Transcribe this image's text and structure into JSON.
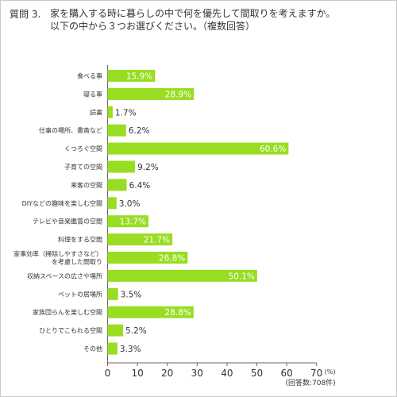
{
  "question": {
    "number": "質問 3.",
    "line1": "家を購入する時に暮らしの中で何を優先して間取りを考えますか。",
    "line2": "以下の中から３つお選びください。（複数回答）"
  },
  "colors": {
    "bar": "#99dd22",
    "label_inside": "#ffffff",
    "label_outside": "#333333",
    "axis": "#666666",
    "grid": "#aaaaaa"
  },
  "chart_data": {
    "type": "bar",
    "orientation": "horizontal",
    "title": "",
    "xlabel": "",
    "ylabel": "",
    "categories": [
      [
        "食べる事"
      ],
      [
        "寝る事"
      ],
      [
        "読書"
      ],
      [
        "仕事の場所、書斎など"
      ],
      [
        "くつろぐ空間"
      ],
      [
        "子育ての空間"
      ],
      [
        "来客の空間"
      ],
      [
        "DIYなどの趣味を楽しむ空間"
      ],
      [
        "テレビや音楽鑑賞の空間"
      ],
      [
        "料理をする空間"
      ],
      [
        "家事効率（掃除しやすさなど）",
        "を考慮した間取り"
      ],
      [
        "収納スペースの広さや場所"
      ],
      [
        "ペットの居場所"
      ],
      [
        "家族団らんを楽しむ空間"
      ],
      [
        "ひとりでこもれる空間"
      ],
      [
        "その他"
      ]
    ],
    "values": [
      15.9,
      28.9,
      1.7,
      6.2,
      60.6,
      9.2,
      6.4,
      3.0,
      13.7,
      21.7,
      26.8,
      50.1,
      3.5,
      28.8,
      5.2,
      3.3
    ],
    "value_labels": [
      "15.9%",
      "28.9%",
      "1.7%",
      "6.2%",
      "60.6%",
      "9.2%",
      "6.4%",
      "3.0%",
      "13.7%",
      "21.7%",
      "26.8%",
      "50.1%",
      "3.5%",
      "28.8%",
      "5.2%",
      "3.3%"
    ],
    "xlim": [
      0,
      70
    ],
    "xticks": [
      0,
      10,
      20,
      30,
      40,
      50,
      60,
      70
    ],
    "unit": "(%)",
    "note": "(回答数:708件)",
    "grid": false
  }
}
